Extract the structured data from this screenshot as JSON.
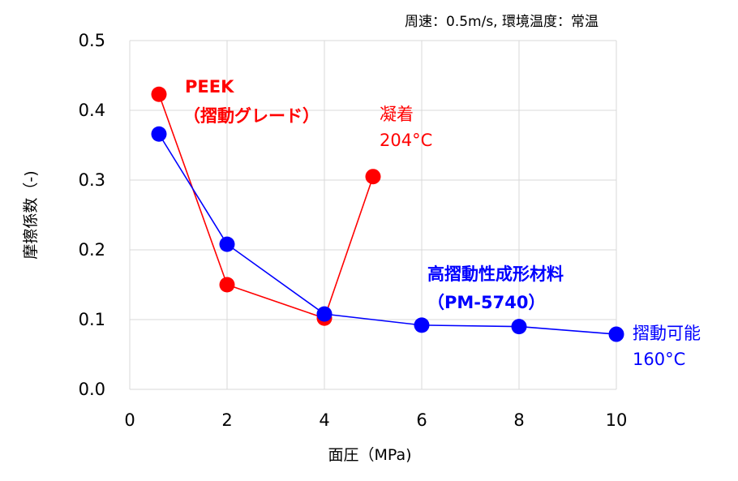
{
  "chart_data": {
    "type": "scatter",
    "conditions": "周速：0.5m/s, 環境温度：常温",
    "xlabel": "面圧（MPa)",
    "ylabel": "摩擦係数（-)",
    "xlim": [
      0,
      10
    ],
    "ylim": [
      0,
      0.5
    ],
    "x_ticks": [
      "0",
      "2",
      "4",
      "6",
      "8",
      "10"
    ],
    "y_ticks": [
      "0.0",
      "0.1",
      "0.2",
      "0.3",
      "0.4",
      "0.5"
    ],
    "grid": true,
    "series": [
      {
        "name_line1": "PEEK",
        "name_line2": "（摺動グレード）",
        "color": "#ff0000",
        "points": [
          {
            "x": 0.6,
            "y": 0.423
          },
          {
            "x": 2.0,
            "y": 0.15
          },
          {
            "x": 4.0,
            "y": 0.102
          },
          {
            "x": 5.0,
            "y": 0.305
          }
        ],
        "annotation_line1": "凝着",
        "annotation_line2": "204°C"
      },
      {
        "name_line1": "高摺動性成形材料",
        "name_line2": "（PM-5740）",
        "color": "#0000ff",
        "points": [
          {
            "x": 0.6,
            "y": 0.366
          },
          {
            "x": 2.0,
            "y": 0.208
          },
          {
            "x": 4.0,
            "y": 0.108
          },
          {
            "x": 6.0,
            "y": 0.092
          },
          {
            "x": 8.0,
            "y": 0.09
          },
          {
            "x": 10.0,
            "y": 0.079
          }
        ],
        "annotation_line1": "摺動可能",
        "annotation_line2": "160°C"
      }
    ]
  }
}
